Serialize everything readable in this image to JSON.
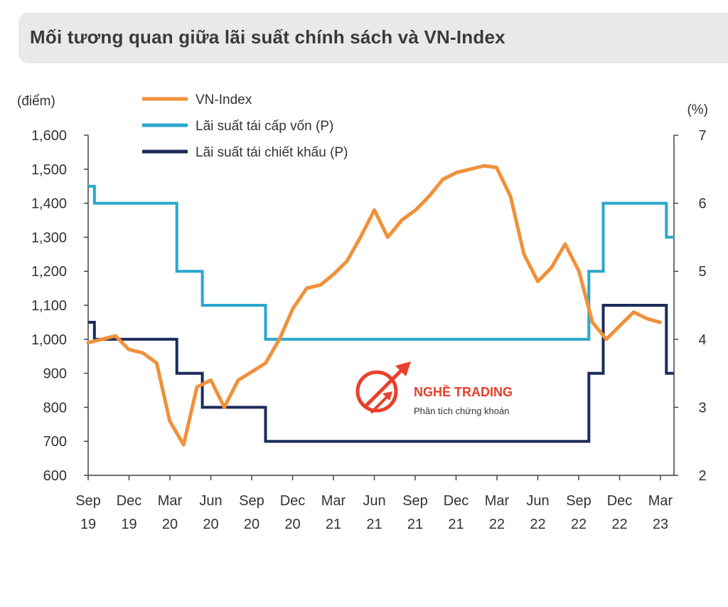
{
  "title": "Mối tương quan giữa lãi suất chính sách và VN-Index",
  "watermark": {
    "brand": "NGHỀ TRADING",
    "tagline": "Phân tích chứng khoán",
    "color": "#e8402a"
  },
  "chart_data": {
    "type": "line",
    "title": "Mối tương quan giữa lãi suất chính sách và VN-Index",
    "left_axis": {
      "unit_label": "(điểm)",
      "ylim": [
        600,
        1600
      ],
      "ticks": [
        "600",
        "700",
        "800",
        "900",
        "1,000",
        "1,100",
        "1,200",
        "1,300",
        "1,400",
        "1,500",
        "1,600"
      ]
    },
    "right_axis": {
      "unit_label": "(%)",
      "ylim": [
        2,
        7
      ],
      "ticks": [
        "2",
        "3",
        "4",
        "5",
        "6",
        "7"
      ]
    },
    "x_axis": {
      "ticks_top": [
        "Sep",
        "Dec",
        "Mar",
        "Jun",
        "Sep",
        "Dec",
        "Mar",
        "Jun",
        "Sep",
        "Dec",
        "Mar",
        "Jun",
        "Sep",
        "Dec",
        "Mar"
      ],
      "ticks_bottom": [
        "19",
        "19",
        "20",
        "20",
        "20",
        "20",
        "21",
        "21",
        "21",
        "21",
        "22",
        "22",
        "22",
        "22",
        "23"
      ],
      "range": [
        "2019-09",
        "2023-04"
      ]
    },
    "grid": false,
    "legend_position": "top-left",
    "series": [
      {
        "name": "VN-Index",
        "axis": "left",
        "color": "#f0913a",
        "style": "line",
        "x": [
          "2019-09",
          "2019-10",
          "2019-11",
          "2019-12",
          "2020-01",
          "2020-02",
          "2020-03",
          "2020-04",
          "2020-05",
          "2020-06",
          "2020-07",
          "2020-08",
          "2020-09",
          "2020-10",
          "2020-11",
          "2020-12",
          "2021-01",
          "2021-02",
          "2021-03",
          "2021-04",
          "2021-05",
          "2021-06",
          "2021-07",
          "2021-08",
          "2021-09",
          "2021-10",
          "2021-11",
          "2021-12",
          "2022-01",
          "2022-02",
          "2022-03",
          "2022-04",
          "2022-05",
          "2022-06",
          "2022-07",
          "2022-08",
          "2022-09",
          "2022-10",
          "2022-11",
          "2022-12",
          "2023-01",
          "2023-02",
          "2023-03"
        ],
        "values": [
          990,
          1000,
          1010,
          970,
          960,
          930,
          760,
          690,
          860,
          880,
          800,
          880,
          905,
          930,
          1000,
          1090,
          1150,
          1160,
          1190,
          1230,
          1300,
          1380,
          1300,
          1350,
          1380,
          1420,
          1470,
          1490,
          1500,
          1510,
          1505,
          1420,
          1250,
          1170,
          1210,
          1280,
          1200,
          1050,
          1000,
          1040,
          1080,
          1060,
          1050
        ]
      },
      {
        "name": "Lãi suất tái cấp vốn (P)",
        "axis": "right",
        "color": "#2aa7cc",
        "style": "step",
        "x": [
          "2019-09",
          "2019-09-15",
          "2020-03-17",
          "2020-05-13",
          "2020-10-01",
          "2022-09-23",
          "2022-10-25",
          "2023-03-15",
          "2023-04"
        ],
        "values": [
          6.25,
          6.0,
          5.0,
          4.5,
          4.0,
          5.0,
          6.0,
          5.5,
          5.5
        ]
      },
      {
        "name": "Lãi suất tái chiết khấu (P)",
        "axis": "right",
        "color": "#1c2b5a",
        "style": "step",
        "x": [
          "2019-09",
          "2019-09-15",
          "2020-03-17",
          "2020-05-13",
          "2020-10-01",
          "2022-09-23",
          "2022-10-25",
          "2023-03-15",
          "2023-04"
        ],
        "values": [
          4.25,
          4.0,
          3.5,
          3.0,
          2.5,
          3.5,
          4.5,
          3.5,
          3.5
        ]
      }
    ]
  }
}
